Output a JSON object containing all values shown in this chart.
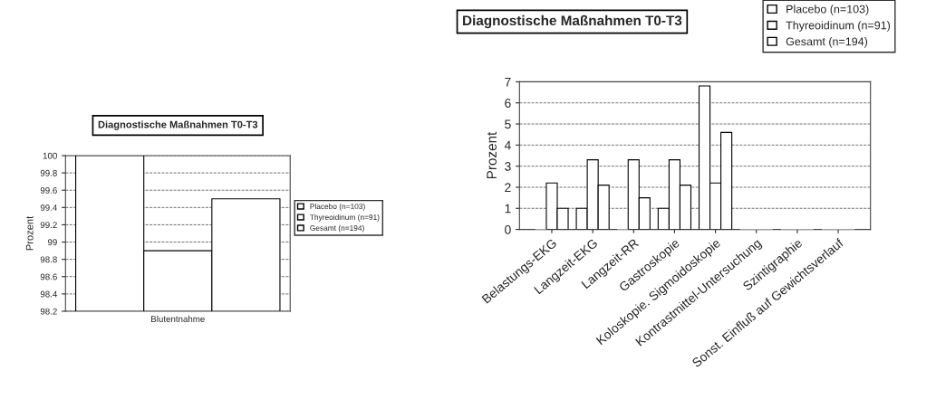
{
  "chart_data": [
    {
      "type": "bar",
      "title": "Diagnostische Maßnahmen T0-T3",
      "ylabel": "Prozent",
      "categories": [
        "Blutentnahme"
      ],
      "series": [
        {
          "name": "Placebo (n=103)",
          "color": "#ffffff",
          "values": [
            100
          ]
        },
        {
          "name": "Thyreoidinum (n=91)",
          "color": "#ffffff",
          "values": [
            98.9
          ]
        },
        {
          "name": "Gesamt (n=194)",
          "color": "#ffffff",
          "values": [
            99.5
          ]
        }
      ],
      "ylim": [
        98.2,
        100
      ],
      "yticks": [
        98.2,
        98.4,
        98.6,
        98.8,
        99,
        99.2,
        99.4,
        99.6,
        99.8,
        100
      ],
      "grid": "y",
      "legend": "right"
    },
    {
      "type": "bar",
      "title": "Diagnostische Maßnahmen T0-T3",
      "ylabel": "Prozent",
      "categories": [
        "Belastungs-EKG",
        "Langzeit-EKG",
        "Langzeit-RR",
        "Gastroskopie",
        "Koloskopie. Sigmoidoskopie",
        "Kontrastmittel-Untersuchung",
        "Szintigraphie",
        "Sonst. Einfluß auf Gewichtsverlauf"
      ],
      "series": [
        {
          "name": "Placebo (n=103)",
          "color": "#ffffff",
          "values": [
            0,
            1.0,
            0,
            1.0,
            6.8,
            0,
            0,
            0
          ]
        },
        {
          "name": "Thyreoidinum (n=91)",
          "color": "#ffffff",
          "values": [
            2.2,
            3.3,
            3.3,
            3.3,
            2.2,
            0,
            0,
            0
          ]
        },
        {
          "name": "Gesamt (n=194)",
          "color": "#ffffff",
          "values": [
            1.0,
            2.1,
            1.5,
            2.1,
            4.6,
            0,
            0,
            0
          ]
        }
      ],
      "ylim": [
        0,
        7
      ],
      "yticks": [
        0,
        1,
        2,
        3,
        4,
        5,
        6,
        7
      ],
      "grid": "y",
      "legend": "top right"
    }
  ]
}
